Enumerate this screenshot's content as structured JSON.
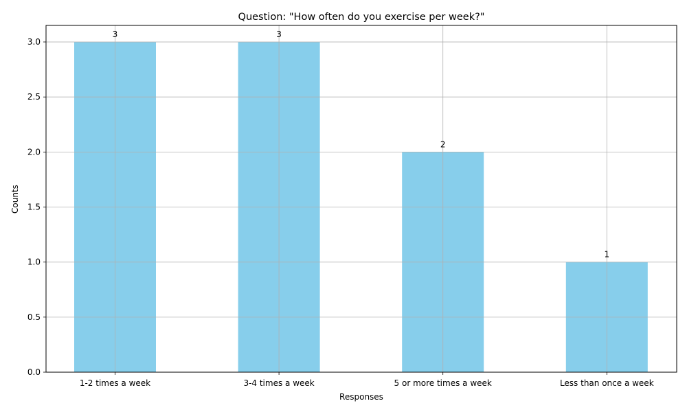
{
  "chart_data": {
    "type": "bar",
    "title": "Question: \"How often do you exercise per week?\"",
    "xlabel": "Responses",
    "ylabel": "Counts",
    "categories": [
      "1-2 times a week",
      "3-4 times a week",
      "5 or more times a week",
      "Less than once a week"
    ],
    "values": [
      3,
      3,
      2,
      1
    ],
    "data_labels": [
      "3",
      "3",
      "2",
      "1"
    ],
    "ylim": [
      0,
      3.15
    ],
    "yticks": [
      0.0,
      0.5,
      1.0,
      1.5,
      2.0,
      2.5,
      3.0
    ],
    "ytick_labels": [
      "0.0",
      "0.5",
      "1.0",
      "1.5",
      "2.0",
      "2.5",
      "3.0"
    ],
    "grid": true,
    "bar_color": "#87ceeb",
    "grid_color": "#b0b0b0"
  }
}
